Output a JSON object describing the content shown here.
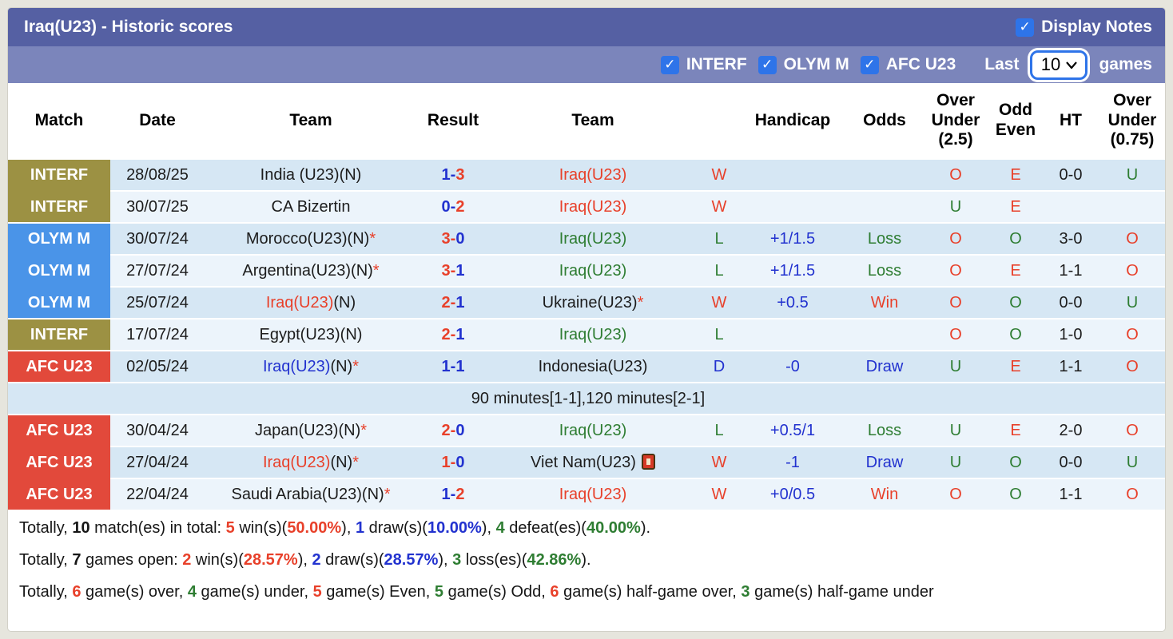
{
  "colors": {
    "palette": {
      "red": "#e8402a",
      "blue": "#2232cf",
      "green": "#2e7d32",
      "black": "#1c1c1c"
    },
    "badges": {
      "INTERF": "#9c9143",
      "OLYM M": "#4a94e8",
      "AFC U23": "#e2493b"
    },
    "title_bar_bg": "#5560a3",
    "filter_bar_bg": "#7b85bb",
    "checkbox_blue": "#2e74e9",
    "row_dark_bg": "#d6e7f4",
    "row_light_bg": "#ecf4fb"
  },
  "header": {
    "title": "Iraq(U23) - Historic scores",
    "display_notes_label": "Display Notes",
    "display_notes_checked": true
  },
  "filterbar": {
    "competitions": [
      {
        "label": "INTERF",
        "checked": true
      },
      {
        "label": "OLYM M",
        "checked": true
      },
      {
        "label": "AFC U23",
        "checked": true
      }
    ],
    "last_label": "Last",
    "games_label": "games",
    "games_count": "10"
  },
  "table": {
    "columns": [
      [
        "Match"
      ],
      [
        "Date"
      ],
      [
        "Team"
      ],
      [
        "Result"
      ],
      [
        "Team"
      ],
      [
        ""
      ],
      [
        "Handicap"
      ],
      [
        "Odds"
      ],
      [
        "Over",
        "Under",
        "(2.5)"
      ],
      [
        "Odd",
        "Even"
      ],
      [
        "HT"
      ],
      [
        "Over",
        "Under",
        "(0.75)"
      ]
    ],
    "rows": [
      {
        "type": "match",
        "shade": "dark",
        "merge_badge_up": false,
        "competition": "INTERF",
        "date": "28/08/25",
        "team1": [
          {
            "t": "India (U23)(N)",
            "c": "black"
          }
        ],
        "score": {
          "h": "1",
          "a": "3",
          "hc": "blue",
          "ac": "red"
        },
        "team2": [
          {
            "t": "Iraq(U23)",
            "c": "red"
          }
        ],
        "team2_icon": false,
        "wdl": {
          "t": "W",
          "c": "red"
        },
        "handicap": "",
        "odds": {
          "t": "",
          "c": "black"
        },
        "ou25": {
          "t": "O",
          "c": "red"
        },
        "oddeven": {
          "t": "E",
          "c": "red"
        },
        "ht": "0-0",
        "ou075": {
          "t": "U",
          "c": "green"
        }
      },
      {
        "type": "match",
        "shade": "light",
        "merge_badge_up": true,
        "competition": "INTERF",
        "date": "30/07/25",
        "team1": [
          {
            "t": "CA Bizertin",
            "c": "black"
          }
        ],
        "score": {
          "h": "0",
          "a": "2",
          "hc": "blue",
          "ac": "red"
        },
        "team2": [
          {
            "t": "Iraq(U23)",
            "c": "red"
          }
        ],
        "team2_icon": false,
        "wdl": {
          "t": "W",
          "c": "red"
        },
        "handicap": "",
        "odds": {
          "t": "",
          "c": "black"
        },
        "ou25": {
          "t": "U",
          "c": "green"
        },
        "oddeven": {
          "t": "E",
          "c": "red"
        },
        "ht": "",
        "ou075": {
          "t": "",
          "c": "black"
        }
      },
      {
        "type": "match",
        "shade": "dark",
        "merge_badge_up": false,
        "competition": "OLYM M",
        "date": "30/07/24",
        "team1": [
          {
            "t": "Morocco(U23)(N)",
            "c": "black"
          },
          {
            "t": "*",
            "c": "red"
          }
        ],
        "score": {
          "h": "3",
          "a": "0",
          "hc": "red",
          "ac": "blue"
        },
        "team2": [
          {
            "t": "Iraq(U23)",
            "c": "green"
          }
        ],
        "team2_icon": false,
        "wdl": {
          "t": "L",
          "c": "green"
        },
        "handicap": "+1/1.5",
        "odds": {
          "t": "Loss",
          "c": "green"
        },
        "ou25": {
          "t": "O",
          "c": "red"
        },
        "oddeven": {
          "t": "O",
          "c": "green"
        },
        "ht": "3-0",
        "ou075": {
          "t": "O",
          "c": "red"
        }
      },
      {
        "type": "match",
        "shade": "light",
        "merge_badge_up": true,
        "competition": "OLYM M",
        "date": "27/07/24",
        "team1": [
          {
            "t": "Argentina(U23)(N)",
            "c": "black"
          },
          {
            "t": "*",
            "c": "red"
          }
        ],
        "score": {
          "h": "3",
          "a": "1",
          "hc": "red",
          "ac": "blue"
        },
        "team2": [
          {
            "t": "Iraq(U23)",
            "c": "green"
          }
        ],
        "team2_icon": false,
        "wdl": {
          "t": "L",
          "c": "green"
        },
        "handicap": "+1/1.5",
        "odds": {
          "t": "Loss",
          "c": "green"
        },
        "ou25": {
          "t": "O",
          "c": "red"
        },
        "oddeven": {
          "t": "E",
          "c": "red"
        },
        "ht": "1-1",
        "ou075": {
          "t": "O",
          "c": "red"
        }
      },
      {
        "type": "match",
        "shade": "dark",
        "merge_badge_up": true,
        "competition": "OLYM M",
        "date": "25/07/24",
        "team1": [
          {
            "t": "Iraq(U23)",
            "c": "red"
          },
          {
            "t": "(N)",
            "c": "black"
          }
        ],
        "score": {
          "h": "2",
          "a": "1",
          "hc": "red",
          "ac": "blue"
        },
        "team2": [
          {
            "t": "Ukraine(U23)",
            "c": "black"
          },
          {
            "t": "*",
            "c": "red"
          }
        ],
        "team2_icon": false,
        "wdl": {
          "t": "W",
          "c": "red"
        },
        "handicap": "+0.5",
        "odds": {
          "t": "Win",
          "c": "red"
        },
        "ou25": {
          "t": "O",
          "c": "red"
        },
        "oddeven": {
          "t": "O",
          "c": "green"
        },
        "ht": "0-0",
        "ou075": {
          "t": "U",
          "c": "green"
        }
      },
      {
        "type": "match",
        "shade": "light",
        "merge_badge_up": false,
        "competition": "INTERF",
        "date": "17/07/24",
        "team1": [
          {
            "t": "Egypt(U23)(N)",
            "c": "black"
          }
        ],
        "score": {
          "h": "2",
          "a": "1",
          "hc": "red",
          "ac": "blue"
        },
        "team2": [
          {
            "t": "Iraq(U23)",
            "c": "green"
          }
        ],
        "team2_icon": false,
        "wdl": {
          "t": "L",
          "c": "green"
        },
        "handicap": "",
        "odds": {
          "t": "",
          "c": "black"
        },
        "ou25": {
          "t": "O",
          "c": "red"
        },
        "oddeven": {
          "t": "O",
          "c": "green"
        },
        "ht": "1-0",
        "ou075": {
          "t": "O",
          "c": "red"
        }
      },
      {
        "type": "match",
        "shade": "dark",
        "merge_badge_up": false,
        "competition": "AFC U23",
        "date": "02/05/24",
        "team1": [
          {
            "t": "Iraq(U23)",
            "c": "blue"
          },
          {
            "t": "(N)",
            "c": "black"
          },
          {
            "t": "*",
            "c": "red"
          }
        ],
        "score": {
          "h": "1",
          "a": "1",
          "hc": "blue",
          "ac": "blue"
        },
        "team2": [
          {
            "t": "Indonesia(U23)",
            "c": "black"
          }
        ],
        "team2_icon": false,
        "wdl": {
          "t": "D",
          "c": "blue"
        },
        "handicap": "-0",
        "odds": {
          "t": "Draw",
          "c": "blue"
        },
        "ou25": {
          "t": "U",
          "c": "green"
        },
        "oddeven": {
          "t": "E",
          "c": "red"
        },
        "ht": "1-1",
        "ou075": {
          "t": "O",
          "c": "red"
        }
      },
      {
        "type": "note",
        "shade": "dark",
        "text": "90 minutes[1-1],120 minutes[2-1]"
      },
      {
        "type": "match",
        "shade": "light",
        "merge_badge_up": false,
        "competition": "AFC U23",
        "date": "30/04/24",
        "team1": [
          {
            "t": "Japan(U23)(N)",
            "c": "black"
          },
          {
            "t": "*",
            "c": "red"
          }
        ],
        "score": {
          "h": "2",
          "a": "0",
          "hc": "red",
          "ac": "blue"
        },
        "team2": [
          {
            "t": "Iraq(U23)",
            "c": "green"
          }
        ],
        "team2_icon": false,
        "wdl": {
          "t": "L",
          "c": "green"
        },
        "handicap": "+0.5/1",
        "odds": {
          "t": "Loss",
          "c": "green"
        },
        "ou25": {
          "t": "U",
          "c": "green"
        },
        "oddeven": {
          "t": "E",
          "c": "red"
        },
        "ht": "2-0",
        "ou075": {
          "t": "O",
          "c": "red"
        }
      },
      {
        "type": "match",
        "shade": "dark",
        "merge_badge_up": true,
        "competition": "AFC U23",
        "date": "27/04/24",
        "team1": [
          {
            "t": "Iraq(U23)",
            "c": "red"
          },
          {
            "t": "(N)",
            "c": "black"
          },
          {
            "t": "*",
            "c": "red"
          }
        ],
        "score": {
          "h": "1",
          "a": "0",
          "hc": "red",
          "ac": "blue"
        },
        "team2": [
          {
            "t": "Viet Nam(U23)",
            "c": "black"
          }
        ],
        "team2_icon": true,
        "wdl": {
          "t": "W",
          "c": "red"
        },
        "handicap": "-1",
        "odds": {
          "t": "Draw",
          "c": "blue"
        },
        "ou25": {
          "t": "U",
          "c": "green"
        },
        "oddeven": {
          "t": "O",
          "c": "green"
        },
        "ht": "0-0",
        "ou075": {
          "t": "U",
          "c": "green"
        }
      },
      {
        "type": "match",
        "shade": "light",
        "merge_badge_up": true,
        "competition": "AFC U23",
        "date": "22/04/24",
        "team1": [
          {
            "t": "Saudi Arabia(U23)(N)",
            "c": "black"
          },
          {
            "t": "*",
            "c": "red"
          }
        ],
        "score": {
          "h": "1",
          "a": "2",
          "hc": "blue",
          "ac": "red"
        },
        "team2": [
          {
            "t": "Iraq(U23)",
            "c": "red"
          }
        ],
        "team2_icon": false,
        "wdl": {
          "t": "W",
          "c": "red"
        },
        "handicap": "+0/0.5",
        "odds": {
          "t": "Win",
          "c": "red"
        },
        "ou25": {
          "t": "O",
          "c": "red"
        },
        "oddeven": {
          "t": "O",
          "c": "green"
        },
        "ht": "1-1",
        "ou075": {
          "t": "O",
          "c": "red"
        }
      }
    ]
  },
  "footer": {
    "lines": [
      [
        {
          "t": "Totally, "
        },
        {
          "t": "10",
          "b": true
        },
        {
          "t": " match(es) in total: "
        },
        {
          "t": "5",
          "c": "red",
          "b": true
        },
        {
          "t": " win(s)("
        },
        {
          "t": "50.00%",
          "c": "red",
          "b": true
        },
        {
          "t": "), "
        },
        {
          "t": "1",
          "c": "blue",
          "b": true
        },
        {
          "t": " draw(s)("
        },
        {
          "t": "10.00%",
          "c": "blue",
          "b": true
        },
        {
          "t": "), "
        },
        {
          "t": "4",
          "c": "green",
          "b": true
        },
        {
          "t": " defeat(es)("
        },
        {
          "t": "40.00%",
          "c": "green",
          "b": true
        },
        {
          "t": ")."
        }
      ],
      [
        {
          "t": "Totally, "
        },
        {
          "t": "7",
          "b": true
        },
        {
          "t": " games open: "
        },
        {
          "t": "2",
          "c": "red",
          "b": true
        },
        {
          "t": " win(s)("
        },
        {
          "t": "28.57%",
          "c": "red",
          "b": true
        },
        {
          "t": "), "
        },
        {
          "t": "2",
          "c": "blue",
          "b": true
        },
        {
          "t": " draw(s)("
        },
        {
          "t": "28.57%",
          "c": "blue",
          "b": true
        },
        {
          "t": "), "
        },
        {
          "t": "3",
          "c": "green",
          "b": true
        },
        {
          "t": " loss(es)("
        },
        {
          "t": "42.86%",
          "c": "green",
          "b": true
        },
        {
          "t": ")."
        }
      ],
      [
        {
          "t": "Totally, "
        },
        {
          "t": "6",
          "c": "red",
          "b": true
        },
        {
          "t": " game(s) over, "
        },
        {
          "t": "4",
          "c": "green",
          "b": true
        },
        {
          "t": " game(s) under, "
        },
        {
          "t": "5",
          "c": "red",
          "b": true
        },
        {
          "t": " game(s) Even, "
        },
        {
          "t": "5",
          "c": "green",
          "b": true
        },
        {
          "t": " game(s) Odd, "
        },
        {
          "t": "6",
          "c": "red",
          "b": true
        },
        {
          "t": " game(s) half-game over, "
        },
        {
          "t": "3",
          "c": "green",
          "b": true
        },
        {
          "t": " game(s) half-game under"
        }
      ]
    ]
  }
}
